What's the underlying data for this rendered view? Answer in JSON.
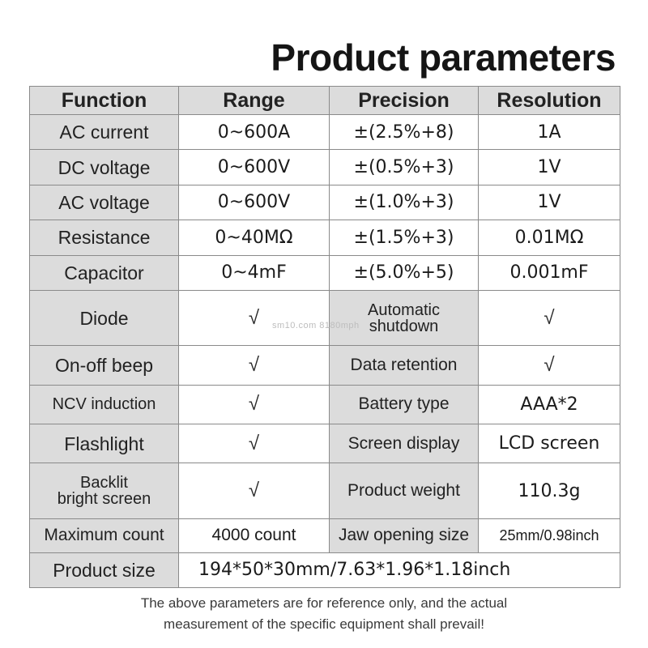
{
  "title": "Product parameters",
  "headers": [
    "Function",
    "Range",
    "Precision",
    "Resolution"
  ],
  "rows": [
    {
      "function": "AC current",
      "range": "0~600A",
      "precision": "±(2.5%+8)",
      "resolution": "1A"
    },
    {
      "function": "DC voltage",
      "range": "0~600V",
      "precision": "±(0.5%+3)",
      "resolution": "1V"
    },
    {
      "function": "AC voltage",
      "range": "0~600V",
      "precision": "±(1.0%+3)",
      "resolution": "1V"
    },
    {
      "function": "Resistance",
      "range": "0~40MΩ",
      "precision": "±(1.5%+3)",
      "resolution": "0.01MΩ"
    },
    {
      "function": "Capacitor",
      "range": "0~4mF",
      "precision": "±(5.0%+5)",
      "resolution": "0.001mF"
    }
  ],
  "features": [
    {
      "left_label": "Diode",
      "left_value": "√",
      "right_label_line1": "Automatic",
      "right_label_line2": "shutdown",
      "right_value": "√"
    },
    {
      "left_label": "On-off beep",
      "left_value": "√",
      "right_label": "Data retention",
      "right_value": "√"
    },
    {
      "left_label": "NCV induction",
      "left_value": "√",
      "right_label": "Battery type",
      "right_value": "AAA*2"
    },
    {
      "left_label": "Flashlight",
      "left_value": "√",
      "right_label": "Screen display",
      "right_value": "LCD screen"
    },
    {
      "left_label_line1": "Backlit",
      "left_label_line2": "bright screen",
      "left_value": "√",
      "right_label": "Product weight",
      "right_value": "110.3g"
    },
    {
      "left_label": "Maximum count",
      "left_value": "4000 count",
      "right_label": "Jaw opening size",
      "right_value": "25mm/0.98inch"
    }
  ],
  "product_size": {
    "label": "Product size",
    "value": "194*50*30mm/7.63*1.96*1.18inch"
  },
  "note_line1": "The above parameters are for reference only, and the actual",
  "note_line2": "measurement of the specific equipment shall prevail!",
  "watermark": "sm10.com 8180mph"
}
